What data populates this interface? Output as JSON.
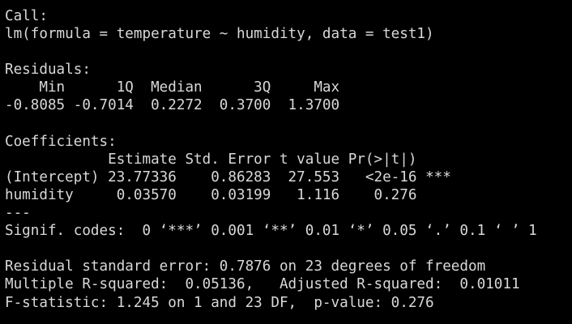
{
  "colors": {
    "background": "#000000",
    "text": "#d8d8d8"
  },
  "console": {
    "lines": [
      "Call:",
      "lm(formula = temperature ~ humidity, data = test1)",
      "",
      "Residuals:",
      "    Min      1Q  Median      3Q     Max ",
      "-0.8085 -0.7014  0.2272  0.3700  1.3700 ",
      "",
      "Coefficients:",
      "            Estimate Std. Error t value Pr(>|t|)    ",
      "(Intercept) 23.77336    0.86283  27.553   <2e-16 ***",
      "humidity     0.03570    0.03199   1.116    0.276    ",
      "---",
      "Signif. codes:  0 ‘***’ 0.001 ‘**’ 0.01 ‘*’ 0.05 ‘.’ 0.1 ‘ ’ 1",
      "",
      "Residual standard error: 0.7876 on 23 degrees of freedom",
      "Multiple R-squared:  0.05136,   Adjusted R-squared:  0.01011 ",
      "F-statistic: 1.245 on 1 and 23 DF,  p-value: 0.276"
    ]
  }
}
